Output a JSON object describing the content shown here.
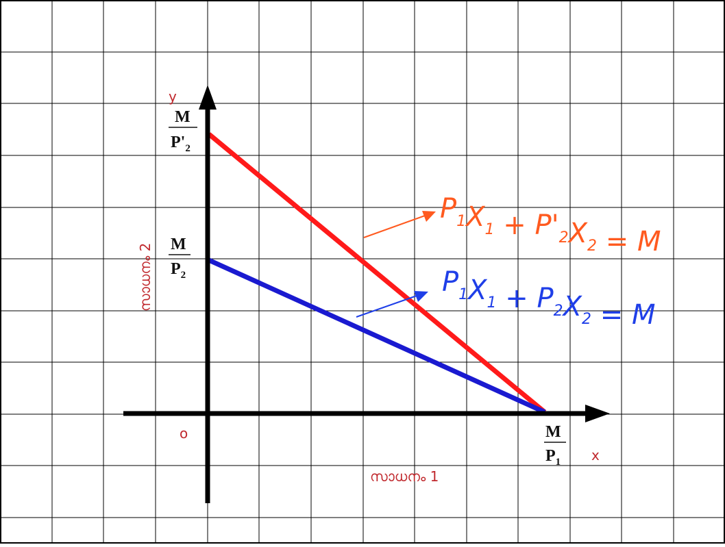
{
  "colors": {
    "grid": "#000000",
    "axis": "#000000",
    "red_line": "#ff1a1a",
    "blue_line": "#1a1ad0",
    "red_label": "#c0282d",
    "red_equation": "#ff5a1f",
    "blue_equation": "#1f3fe8"
  },
  "axes": {
    "y_label": "y",
    "x_label": "x",
    "origin_label": "o",
    "y_axis_title": "സാധനം 2",
    "x_axis_title": "സാധനം 1"
  },
  "intercepts": {
    "y_red": {
      "num": "M",
      "den": "P'",
      "den_sub": "2"
    },
    "y_blue": {
      "num": "M",
      "den": "P",
      "den_sub": "2"
    },
    "x_common": {
      "num": "M",
      "den": "P",
      "den_sub": "1"
    }
  },
  "equations": {
    "red": {
      "parts": [
        {
          "t": "P",
          "s": "1"
        },
        {
          "t": "X",
          "s": "1"
        },
        {
          "t": " + P'",
          "s": "2"
        },
        {
          "t": "X",
          "s": "2"
        },
        {
          "t": " = M",
          "s": ""
        }
      ]
    },
    "blue": {
      "parts": [
        {
          "t": "P",
          "s": "1"
        },
        {
          "t": "X",
          "s": "1"
        },
        {
          "t": " + P",
          "s": "2"
        },
        {
          "t": "X",
          "s": "2"
        },
        {
          "t": " = M",
          "s": ""
        }
      ]
    }
  }
}
